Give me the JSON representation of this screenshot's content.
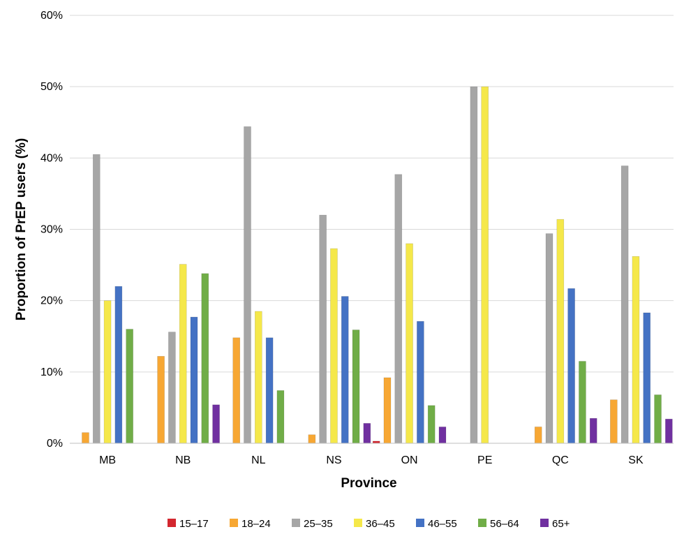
{
  "chart_data": {
    "type": "bar",
    "title": "",
    "xlabel": "Province",
    "ylabel": "Proportion of PrEP users (%)",
    "ylim": [
      0,
      60
    ],
    "yticks": [
      0,
      10,
      20,
      30,
      40,
      50,
      60
    ],
    "ytick_suffix": "%",
    "grid": true,
    "legend_position": "bottom",
    "categories": [
      "MB",
      "NB",
      "NL",
      "NS",
      "ON",
      "PE",
      "QC",
      "SK"
    ],
    "series": [
      {
        "name": "15–17",
        "color": "#d3272f",
        "values": [
          0,
          0,
          0,
          0,
          0.3,
          0,
          0,
          0
        ]
      },
      {
        "name": "18–24",
        "color": "#f7a733",
        "values": [
          1.5,
          12.2,
          14.8,
          1.2,
          9.2,
          0,
          2.3,
          6.1
        ]
      },
      {
        "name": "25–35",
        "color": "#a6a6a6",
        "values": [
          40.5,
          15.6,
          44.4,
          32.0,
          37.7,
          50.0,
          29.4,
          38.9
        ]
      },
      {
        "name": "36–45",
        "color": "#f5e84a",
        "values": [
          20.0,
          25.1,
          18.5,
          27.3,
          28.0,
          50.0,
          31.4,
          26.2
        ]
      },
      {
        "name": "46–55",
        "color": "#4472c4",
        "values": [
          22.0,
          17.7,
          14.8,
          20.6,
          17.1,
          0,
          21.7,
          18.3
        ]
      },
      {
        "name": "56–64",
        "color": "#70ad47",
        "values": [
          16.0,
          23.8,
          7.4,
          15.9,
          5.3,
          0,
          11.5,
          6.8
        ]
      },
      {
        "name": "65+",
        "color": "#7030a0",
        "values": [
          0,
          5.4,
          0,
          2.8,
          2.3,
          0,
          3.5,
          3.4
        ]
      }
    ]
  }
}
